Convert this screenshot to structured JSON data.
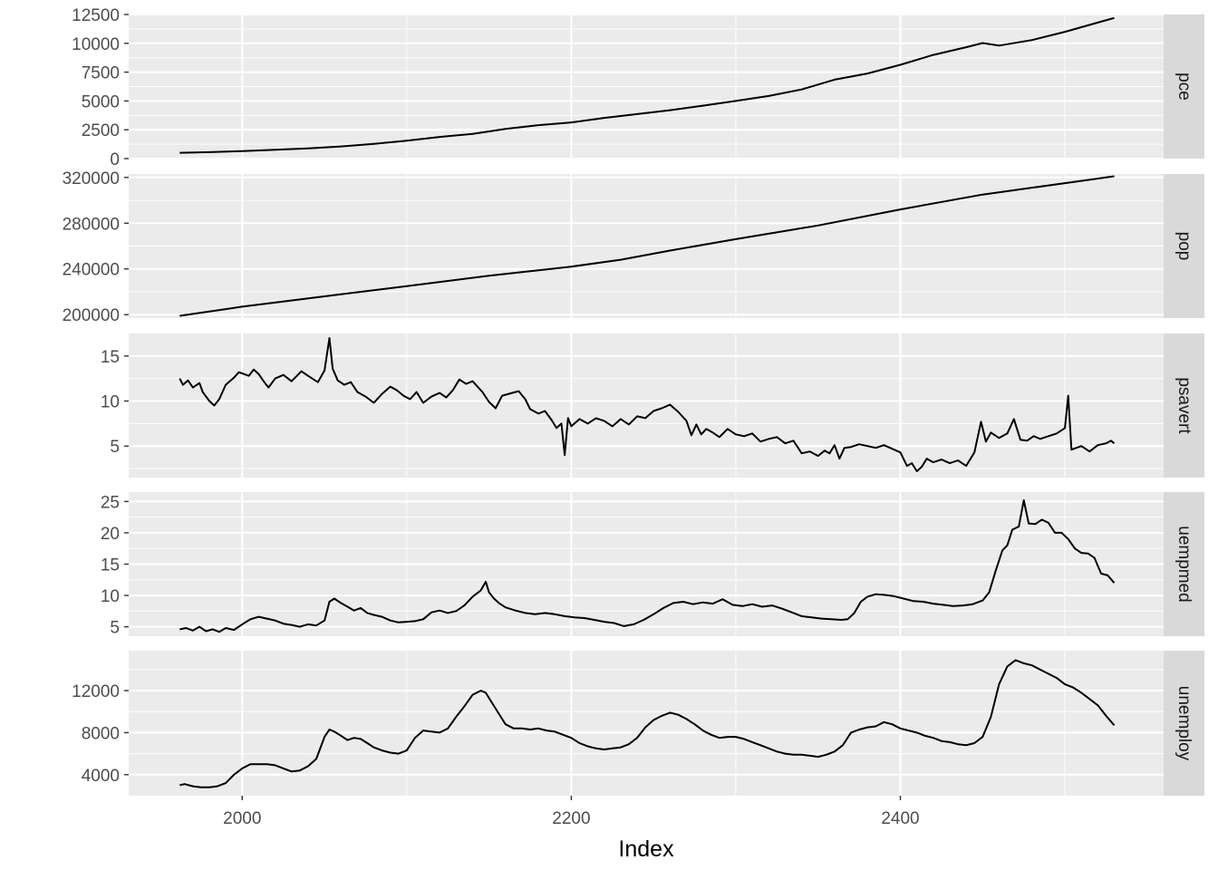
{
  "chart_data": {
    "type": "line",
    "facet": "rows",
    "xlabel": "Index",
    "xlim": [
      1931,
      2560
    ],
    "x_ticks": [
      2000,
      2200,
      2400
    ],
    "x_tick_labels": [
      "2000",
      "2200",
      "2400"
    ],
    "x_minor_breaks": [
      2100,
      2300,
      2500
    ],
    "grid": true,
    "line_color": "#000000",
    "panel_background": "#ebebeb",
    "strip_background": "#d9d9d9",
    "grid_color": "#ffffff",
    "panels": [
      {
        "strip": "pce",
        "ylim": [
          0,
          12500
        ],
        "y_ticks": [
          0,
          2500,
          5000,
          7500,
          10000,
          12500
        ],
        "y_tick_labels": [
          "0",
          "2500",
          "5000",
          "7500",
          "10000",
          "12500"
        ],
        "series": [
          {
            "x": [
              1962,
              1980,
              2000,
              2020,
              2040,
              2060,
              2080,
              2100,
              2120,
              2140,
              2160,
              2180,
              2200,
              2220,
              2240,
              2260,
              2280,
              2300,
              2320,
              2340,
              2360,
              2380,
              2400,
              2420,
              2440,
              2450,
              2460,
              2480,
              2500,
              2520,
              2530
            ],
            "y": [
              500,
              560,
              650,
              760,
              880,
              1050,
              1280,
              1560,
              1880,
              2150,
              2580,
              2900,
              3140,
              3530,
              3860,
              4200,
              4590,
              5000,
              5430,
              6000,
              6850,
              7380,
              8140,
              8990,
              9660,
              10020,
              9800,
              10280,
              11000,
              11800,
              12200
            ]
          }
        ]
      },
      {
        "strip": "pop",
        "ylim": [
          197000,
          323000
        ],
        "y_ticks": [
          200000,
          240000,
          280000,
          320000
        ],
        "y_tick_labels": [
          "200000",
          "240000",
          "280000",
          "320000"
        ],
        "series": [
          {
            "x": [
              1962,
              2000,
              2050,
              2100,
              2150,
              2200,
              2230,
              2260,
              2300,
              2350,
              2400,
              2450,
              2500,
              2530
            ],
            "y": [
              199000,
              207000,
              216000,
              225000,
              234000,
              242000,
              248000,
              256000,
              266000,
              278000,
              292000,
              305000,
              315000,
              321000
            ]
          }
        ]
      },
      {
        "strip": "psavert",
        "ylim": [
          1.5,
          17.5
        ],
        "y_ticks": [
          5,
          10,
          15
        ],
        "y_tick_labels": [
          "5",
          "10",
          "15"
        ],
        "series": [
          {
            "x": [
              1962,
              1964,
              1967,
              1970,
              1974,
              1976,
              1980,
              1983,
              1986,
              1990,
              1995,
              1998,
              2001,
              2004,
              2007,
              2010,
              2013,
              2016,
              2020,
              2025,
              2030,
              2036,
              2040,
              2046,
              2050,
              2053,
              2055,
              2058,
              2062,
              2066,
              2070,
              2075,
              2080,
              2085,
              2090,
              2094,
              2098,
              2102,
              2106,
              2110,
              2115,
              2120,
              2124,
              2128,
              2132,
              2136,
              2140,
              2146,
              2150,
              2154,
              2158,
              2164,
              2168,
              2172,
              2175,
              2180,
              2184,
              2188,
              2191,
              2194,
              2196,
              2198,
              2200,
              2205,
              2210,
              2215,
              2220,
              2225,
              2230,
              2235,
              2240,
              2245,
              2250,
              2255,
              2260,
              2265,
              2270,
              2273,
              2276,
              2279,
              2282,
              2286,
              2290,
              2295,
              2300,
              2305,
              2310,
              2315,
              2320,
              2325,
              2330,
              2335,
              2340,
              2345,
              2350,
              2354,
              2357,
              2360,
              2363,
              2366,
              2370,
              2375,
              2380,
              2385,
              2390,
              2395,
              2400,
              2404,
              2407,
              2410,
              2413,
              2416,
              2420,
              2425,
              2430,
              2435,
              2440,
              2445,
              2449,
              2452,
              2455,
              2460,
              2465,
              2469,
              2473,
              2477,
              2481,
              2485,
              2490,
              2495,
              2500,
              2502,
              2504,
              2510,
              2515,
              2520,
              2525,
              2528,
              2530
            ],
            "y": [
              12.5,
              11.8,
              12.3,
              11.5,
              12.0,
              11.0,
              10.0,
              9.5,
              10.2,
              11.8,
              12.6,
              13.2,
              13.0,
              12.8,
              13.5,
              13.0,
              12.2,
              11.5,
              12.5,
              12.9,
              12.2,
              13.3,
              12.8,
              12.1,
              13.4,
              17.0,
              13.6,
              12.3,
              11.8,
              12.1,
              11.0,
              10.5,
              9.8,
              10.8,
              11.6,
              11.2,
              10.6,
              10.2,
              11.0,
              9.8,
              10.5,
              10.9,
              10.4,
              11.2,
              12.4,
              11.9,
              12.2,
              11.0,
              9.9,
              9.2,
              10.6,
              10.9,
              11.1,
              10.2,
              9.1,
              8.6,
              8.9,
              7.9,
              7.0,
              7.5,
              4.0,
              8.1,
              7.2,
              8.0,
              7.5,
              8.1,
              7.8,
              7.2,
              8.0,
              7.4,
              8.3,
              8.1,
              8.9,
              9.2,
              9.6,
              8.8,
              7.8,
              6.2,
              7.4,
              6.3,
              6.9,
              6.5,
              6.0,
              6.9,
              6.3,
              6.1,
              6.4,
              5.5,
              5.8,
              6.0,
              5.3,
              5.6,
              4.2,
              4.4,
              3.9,
              4.5,
              4.2,
              5.1,
              3.6,
              4.8,
              4.9,
              5.2,
              5.0,
              4.8,
              5.1,
              4.7,
              4.3,
              2.8,
              3.1,
              2.2,
              2.7,
              3.6,
              3.2,
              3.5,
              3.1,
              3.4,
              2.8,
              4.3,
              7.7,
              5.5,
              6.5,
              5.9,
              6.4,
              8.0,
              5.7,
              5.6,
              6.1,
              5.8,
              6.1,
              6.4,
              7.0,
              10.6,
              4.6,
              5.0,
              4.4,
              5.1,
              5.3,
              5.6,
              5.3
            ]
          }
        ]
      },
      {
        "strip": "uempmed",
        "ylim": [
          3.5,
          26.5
        ],
        "y_ticks": [
          5,
          10,
          15,
          20,
          25
        ],
        "y_tick_labels": [
          "5",
          "10",
          "15",
          "20",
          "25"
        ],
        "series": [
          {
            "x": [
              1962,
              1966,
              1970,
              1974,
              1978,
              1982,
              1986,
              1990,
              1995,
              2000,
              2005,
              2010,
              2015,
              2020,
              2025,
              2030,
              2035,
              2040,
              2045,
              2050,
              2053,
              2056,
              2060,
              2064,
              2068,
              2072,
              2076,
              2080,
              2085,
              2090,
              2095,
              2100,
              2105,
              2110,
              2115,
              2120,
              2125,
              2130,
              2135,
              2140,
              2145,
              2148,
              2150,
              2153,
              2156,
              2160,
              2166,
              2172,
              2178,
              2184,
              2190,
              2196,
              2202,
              2208,
              2214,
              2220,
              2226,
              2232,
              2238,
              2244,
              2250,
              2256,
              2262,
              2268,
              2274,
              2280,
              2286,
              2292,
              2298,
              2304,
              2310,
              2316,
              2322,
              2328,
              2334,
              2340,
              2346,
              2352,
              2358,
              2364,
              2368,
              2372,
              2376,
              2380,
              2385,
              2390,
              2396,
              2402,
              2408,
              2414,
              2420,
              2426,
              2432,
              2438,
              2444,
              2450,
              2454,
              2458,
              2462,
              2465,
              2468,
              2472,
              2475,
              2478,
              2482,
              2486,
              2490,
              2494,
              2498,
              2502,
              2506,
              2510,
              2514,
              2518,
              2522,
              2526,
              2530
            ],
            "y": [
              4.6,
              4.8,
              4.4,
              5.0,
              4.3,
              4.6,
              4.2,
              4.8,
              4.5,
              5.4,
              6.2,
              6.6,
              6.3,
              6.0,
              5.5,
              5.3,
              5.0,
              5.4,
              5.2,
              6.0,
              9.0,
              9.5,
              8.8,
              8.2,
              7.6,
              8.0,
              7.2,
              6.9,
              6.6,
              6.0,
              5.7,
              5.8,
              5.9,
              6.2,
              7.3,
              7.6,
              7.2,
              7.5,
              8.4,
              9.8,
              10.8,
              12.2,
              10.5,
              9.5,
              8.8,
              8.1,
              7.6,
              7.2,
              7.0,
              7.2,
              7.0,
              6.7,
              6.5,
              6.4,
              6.1,
              5.8,
              5.6,
              5.1,
              5.4,
              6.1,
              7.0,
              8.0,
              8.8,
              9.0,
              8.6,
              8.9,
              8.7,
              9.4,
              8.5,
              8.3,
              8.6,
              8.2,
              8.4,
              7.9,
              7.3,
              6.7,
              6.5,
              6.3,
              6.2,
              6.1,
              6.2,
              7.2,
              9.0,
              9.8,
              10.2,
              10.1,
              9.9,
              9.5,
              9.1,
              9.0,
              8.7,
              8.5,
              8.3,
              8.4,
              8.6,
              9.2,
              10.5,
              14.0,
              17.2,
              18.0,
              20.5,
              21.0,
              25.2,
              21.5,
              21.4,
              22.1,
              21.6,
              20.0,
              20.0,
              19.0,
              17.5,
              16.8,
              16.7,
              16.0,
              13.5,
              13.2,
              12.0
            ]
          }
        ]
      },
      {
        "strip": "unemploy",
        "ylim": [
          2000,
          15800
        ],
        "y_ticks": [
          4000,
          8000,
          12000
        ],
        "y_tick_labels": [
          "4000",
          "8000",
          "12000"
        ],
        "series": [
          {
            "x": [
              1962,
              1965,
              1970,
              1975,
              1980,
              1985,
              1990,
              1995,
              2000,
              2005,
              2010,
              2015,
              2020,
              2025,
              2030,
              2035,
              2040,
              2045,
              2050,
              2053,
              2056,
              2060,
              2064,
              2068,
              2072,
              2076,
              2080,
              2085,
              2090,
              2095,
              2100,
              2105,
              2110,
              2115,
              2120,
              2125,
              2130,
              2135,
              2140,
              2145,
              2148,
              2152,
              2156,
              2160,
              2165,
              2170,
              2175,
              2180,
              2185,
              2190,
              2195,
              2200,
              2205,
              2210,
              2215,
              2220,
              2225,
              2230,
              2235,
              2240,
              2245,
              2250,
              2255,
              2260,
              2265,
              2270,
              2275,
              2280,
              2285,
              2290,
              2295,
              2300,
              2305,
              2310,
              2315,
              2320,
              2325,
              2330,
              2335,
              2340,
              2345,
              2350,
              2355,
              2360,
              2365,
              2370,
              2375,
              2380,
              2385,
              2390,
              2395,
              2400,
              2405,
              2410,
              2415,
              2420,
              2425,
              2430,
              2435,
              2440,
              2445,
              2450,
              2455,
              2460,
              2465,
              2470,
              2475,
              2480,
              2485,
              2490,
              2495,
              2500,
              2505,
              2510,
              2515,
              2520,
              2525,
              2530
            ],
            "y": [
              3000,
              3100,
              2900,
              2800,
              2800,
              2900,
              3200,
              4000,
              4600,
              5000,
              5000,
              5000,
              4900,
              4600,
              4300,
              4400,
              4800,
              5500,
              7600,
              8300,
              8100,
              7700,
              7300,
              7500,
              7400,
              7000,
              6600,
              6300,
              6100,
              6000,
              6300,
              7500,
              8200,
              8100,
              8000,
              8400,
              9500,
              10500,
              11600,
              12000,
              11800,
              10800,
              9800,
              8800,
              8400,
              8400,
              8300,
              8400,
              8200,
              8100,
              7800,
              7500,
              7000,
              6700,
              6500,
              6400,
              6500,
              6600,
              6900,
              7500,
              8500,
              9200,
              9600,
              9900,
              9700,
              9300,
              8800,
              8200,
              7800,
              7500,
              7600,
              7600,
              7400,
              7100,
              6800,
              6500,
              6200,
              6000,
              5900,
              5900,
              5800,
              5700,
              5900,
              6200,
              6800,
              8000,
              8300,
              8500,
              8600,
              9000,
              8800,
              8400,
              8200,
              8000,
              7700,
              7500,
              7200,
              7100,
              6900,
              6800,
              7000,
              7600,
              9500,
              12600,
              14300,
              14900,
              14600,
              14400,
              14000,
              13600,
              13200,
              12600,
              12300,
              11800,
              11200,
              10600,
              9600,
              8700
            ]
          }
        ]
      }
    ]
  }
}
